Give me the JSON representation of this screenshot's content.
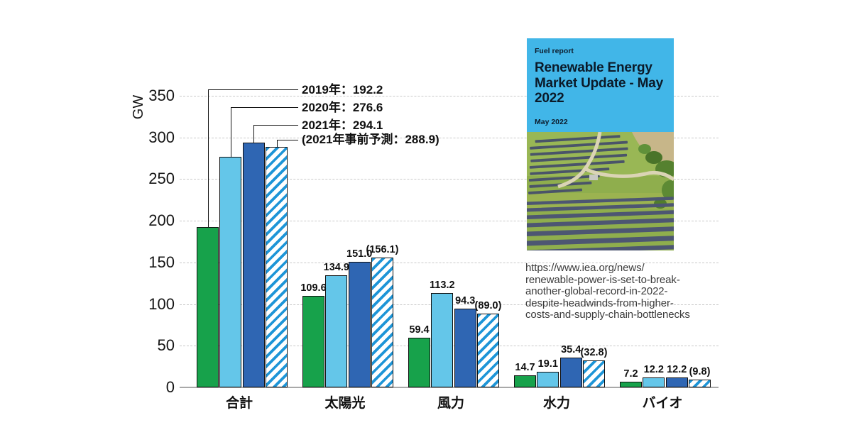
{
  "figure": {
    "background": "#ffffff"
  },
  "chart_data": {
    "type": "bar",
    "title": "",
    "unit_label": "GW",
    "ylabel": "GW",
    "xlabel": "",
    "ylim": [
      0,
      350
    ],
    "yticks": [
      0,
      50,
      100,
      150,
      200,
      250,
      300,
      350
    ],
    "grid": true,
    "legend_position": "top-left-callouts",
    "categories": [
      "合計",
      "太陽光",
      "風力",
      "水力",
      "バイオ"
    ],
    "series": [
      {
        "name": "2019年",
        "pattern": "solid",
        "color": "#17a24b",
        "values": [
          192.2,
          109.6,
          59.4,
          14.7,
          7.2
        ]
      },
      {
        "name": "2020年",
        "pattern": "solid",
        "color": "#64c6e9",
        "values": [
          276.6,
          134.9,
          113.2,
          19.1,
          12.2
        ]
      },
      {
        "name": "2021年",
        "pattern": "solid",
        "color": "#2f66b3",
        "values": [
          294.1,
          151.0,
          94.3,
          35.4,
          12.2
        ]
      },
      {
        "name": "2021年事前予測",
        "pattern": "diagonal-hatch",
        "color": "#1e95d7",
        "values": [
          288.9,
          156.1,
          89.0,
          32.8,
          9.8
        ]
      }
    ],
    "bar_labels": [
      [
        "",
        "",
        "",
        ""
      ],
      [
        "109.6",
        "134.9",
        "151.0",
        "(156.1)"
      ],
      [
        "59.4",
        "113.2",
        "94.3",
        "(89.0)"
      ],
      [
        "14.7",
        "19.1",
        "35.4",
        "(32.8)"
      ],
      [
        "7.2",
        "12.2",
        "12.2",
        "(9.8)"
      ]
    ],
    "callout_labels": [
      "2019年：192.2",
      "2020年：276.6",
      "2021年：294.1",
      "(2021年事前予測：288.9)"
    ]
  },
  "cover": {
    "tag": "Fuel report",
    "title": "Renewable Energy Market Update - May 2022",
    "date": "May 2022",
    "header_bg": "#41b6e8",
    "photo": "aerial-solar-farm"
  },
  "source": {
    "lines": [
      "https://www.iea.org/news/",
      "renewable-power-is-set-to-break-",
      "another-global-record-in-2022-",
      "despite-headwinds-from-higher-",
      "costs-and-supply-chain-bottlenecks"
    ]
  }
}
